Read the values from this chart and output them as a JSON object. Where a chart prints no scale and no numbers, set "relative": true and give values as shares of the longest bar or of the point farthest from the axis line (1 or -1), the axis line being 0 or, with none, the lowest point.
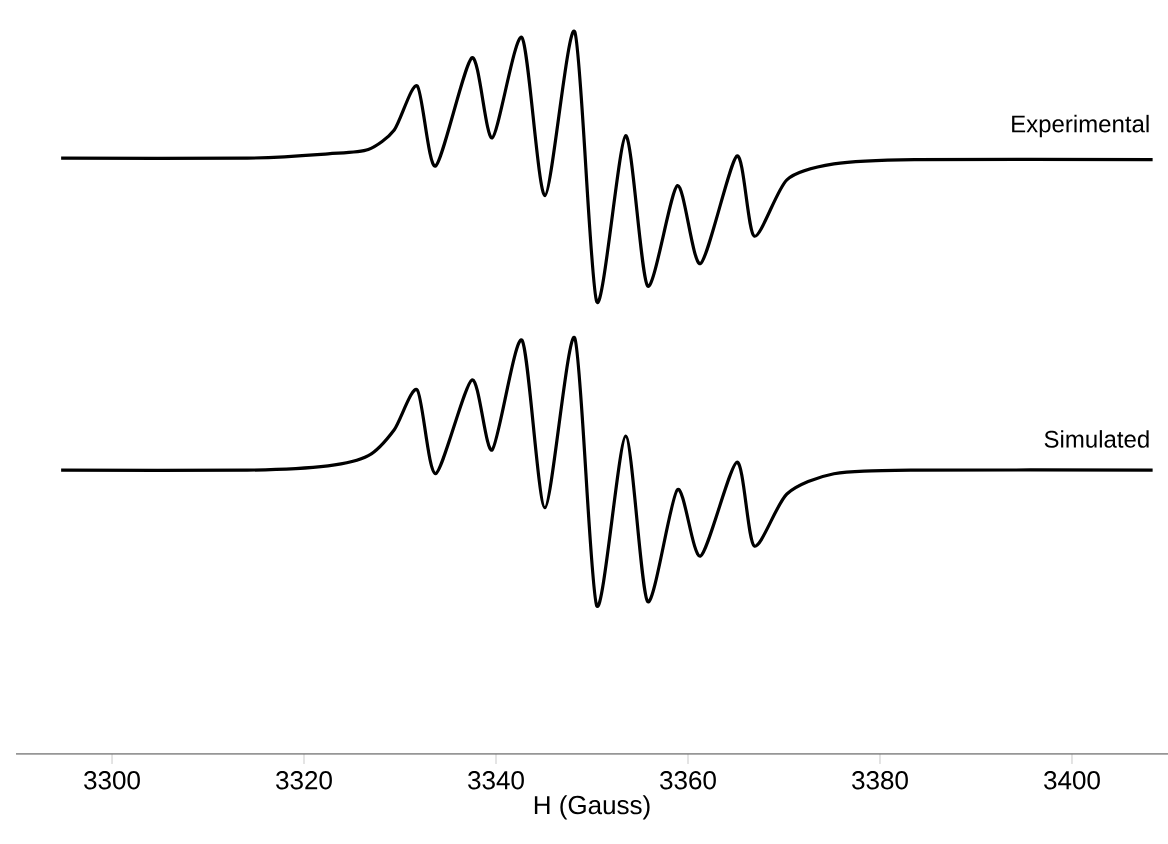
{
  "chart_data": {
    "type": "line",
    "relative": true,
    "xlabel": "H (Gauss)",
    "xlim": [
      3290,
      3410
    ],
    "xticks": [
      3300,
      3320,
      3340,
      3360,
      3380,
      3400
    ],
    "marker": "none",
    "line_style": "solid",
    "x": [
      3294.7,
      3314.1,
      3322.5,
      3326.7,
      3329.4,
      3331.8,
      3333.7,
      3337.5,
      3339.6,
      3342.7,
      3345.1,
      3348.2,
      3350.5,
      3353.5,
      3355.8,
      3358.9,
      3361.3,
      3365.1,
      3366.9,
      3370.3,
      3375.2,
      3383.6,
      3408.4
    ],
    "series": [
      {
        "name": "Experimental",
        "color": "#000000",
        "values": [
          0.825,
          0.825,
          0.831,
          0.837,
          0.864,
          0.925,
          0.814,
          0.964,
          0.853,
          0.992,
          0.773,
          1.0,
          0.626,
          0.856,
          0.648,
          0.787,
          0.679,
          0.828,
          0.717,
          0.795,
          0.817,
          0.823,
          0.823
        ]
      },
      {
        "name": "Simulated",
        "color": "#000000",
        "values": [
          0.393,
          0.393,
          0.399,
          0.413,
          0.449,
          0.504,
          0.388,
          0.518,
          0.421,
          0.573,
          0.341,
          0.576,
          0.205,
          0.44,
          0.211,
          0.366,
          0.274,
          0.404,
          0.288,
          0.36,
          0.388,
          0.393,
          0.393
        ]
      }
    ]
  }
}
